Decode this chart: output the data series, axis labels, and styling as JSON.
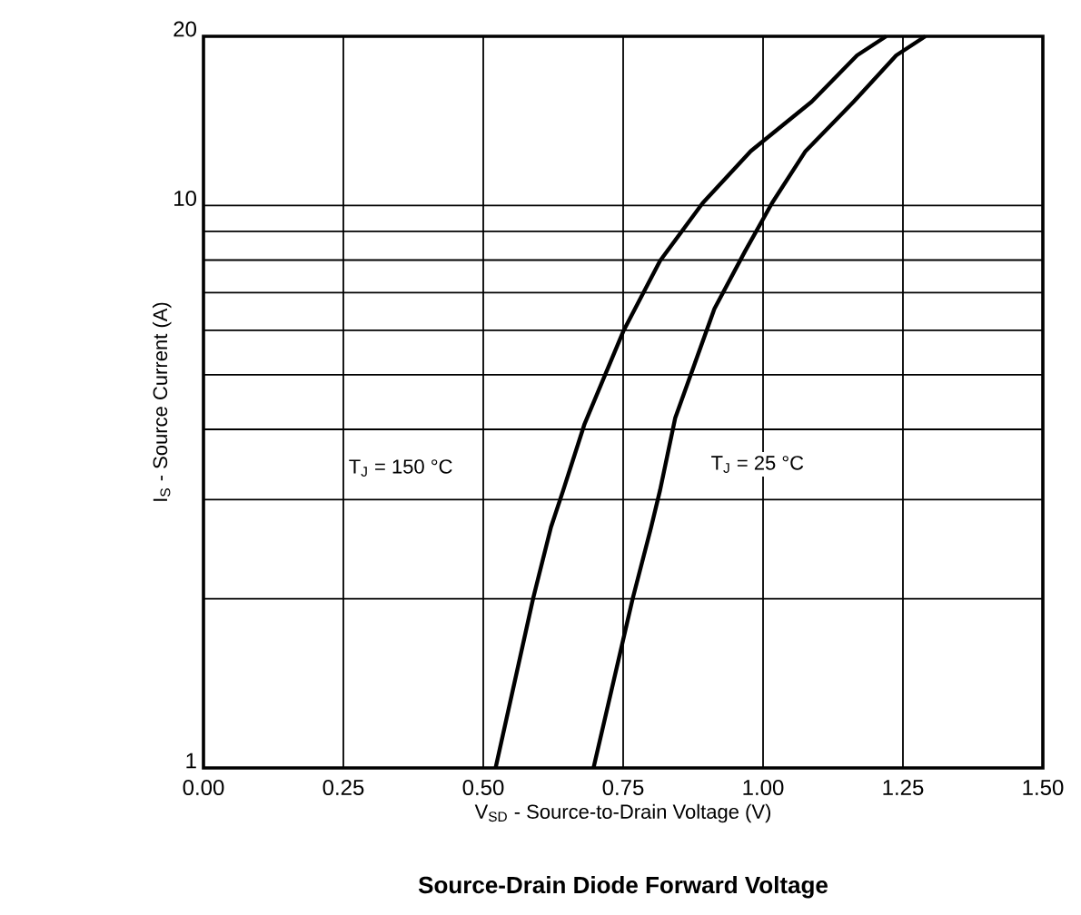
{
  "chart_data": {
    "type": "line",
    "title": "Source-Drain Diode Forward Voltage",
    "xlabel": "V$_{SD}$ - Source-to-Drain Voltage (V)",
    "ylabel": "I$_{S}$ - Source Current (A)",
    "series": [
      {
        "color": "#000000",
        "x": [
          0.522,
          0.589,
          0.621,
          0.643,
          0.681,
          0.751,
          0.816,
          0.892,
          0.978,
          1.087,
          1.168,
          1.22
        ],
        "values": [
          1,
          2,
          2.68,
          3.12,
          4.09,
          6.0,
          7.98,
          10.1,
          12.5,
          15.3,
          18.5,
          20
        ]
      },
      {
        "color": "#000000",
        "x": [
          0.697,
          0.767,
          0.8,
          0.816,
          0.843,
          0.913,
          0.968,
          1.016,
          1.076,
          1.162,
          1.238,
          1.29
        ],
        "values": [
          1,
          2,
          2.68,
          3.12,
          4.19,
          6.55,
          8.3,
          10.1,
          12.5,
          15.3,
          18.5,
          20
        ]
      }
    ],
    "annotations": [
      "T$_{J}$ = 150 °C",
      "T$_{J}$ = 25 °C"
    ],
    "log": "y",
    "grid": true,
    "marker": "none",
    "line_style": "solid",
    "xlim": [
      0,
      1.5
    ],
    "xticks": [
      {
        "value": 0,
        "label": "0.00"
      },
      {
        "value": 0.25,
        "label": "0.25"
      },
      {
        "value": 0.5,
        "label": "0.50"
      },
      {
        "value": 0.75,
        "label": "0.75"
      },
      {
        "value": 1.0,
        "label": "1.00"
      },
      {
        "value": 1.25,
        "label": "1.25"
      },
      {
        "value": 1.5,
        "label": "1.50"
      }
    ],
    "ylim": [
      1,
      20
    ],
    "yticks": [
      1,
      {
        "value": 2,
        "label": null
      },
      {
        "value": 3,
        "label": null
      },
      {
        "value": 4,
        "label": null
      },
      {
        "value": 5,
        "label": null
      },
      {
        "value": 6,
        "label": null
      },
      {
        "value": 7,
        "label": null
      },
      {
        "value": 8,
        "label": null
      },
      {
        "value": 9,
        "label": null
      },
      10,
      20
    ]
  }
}
